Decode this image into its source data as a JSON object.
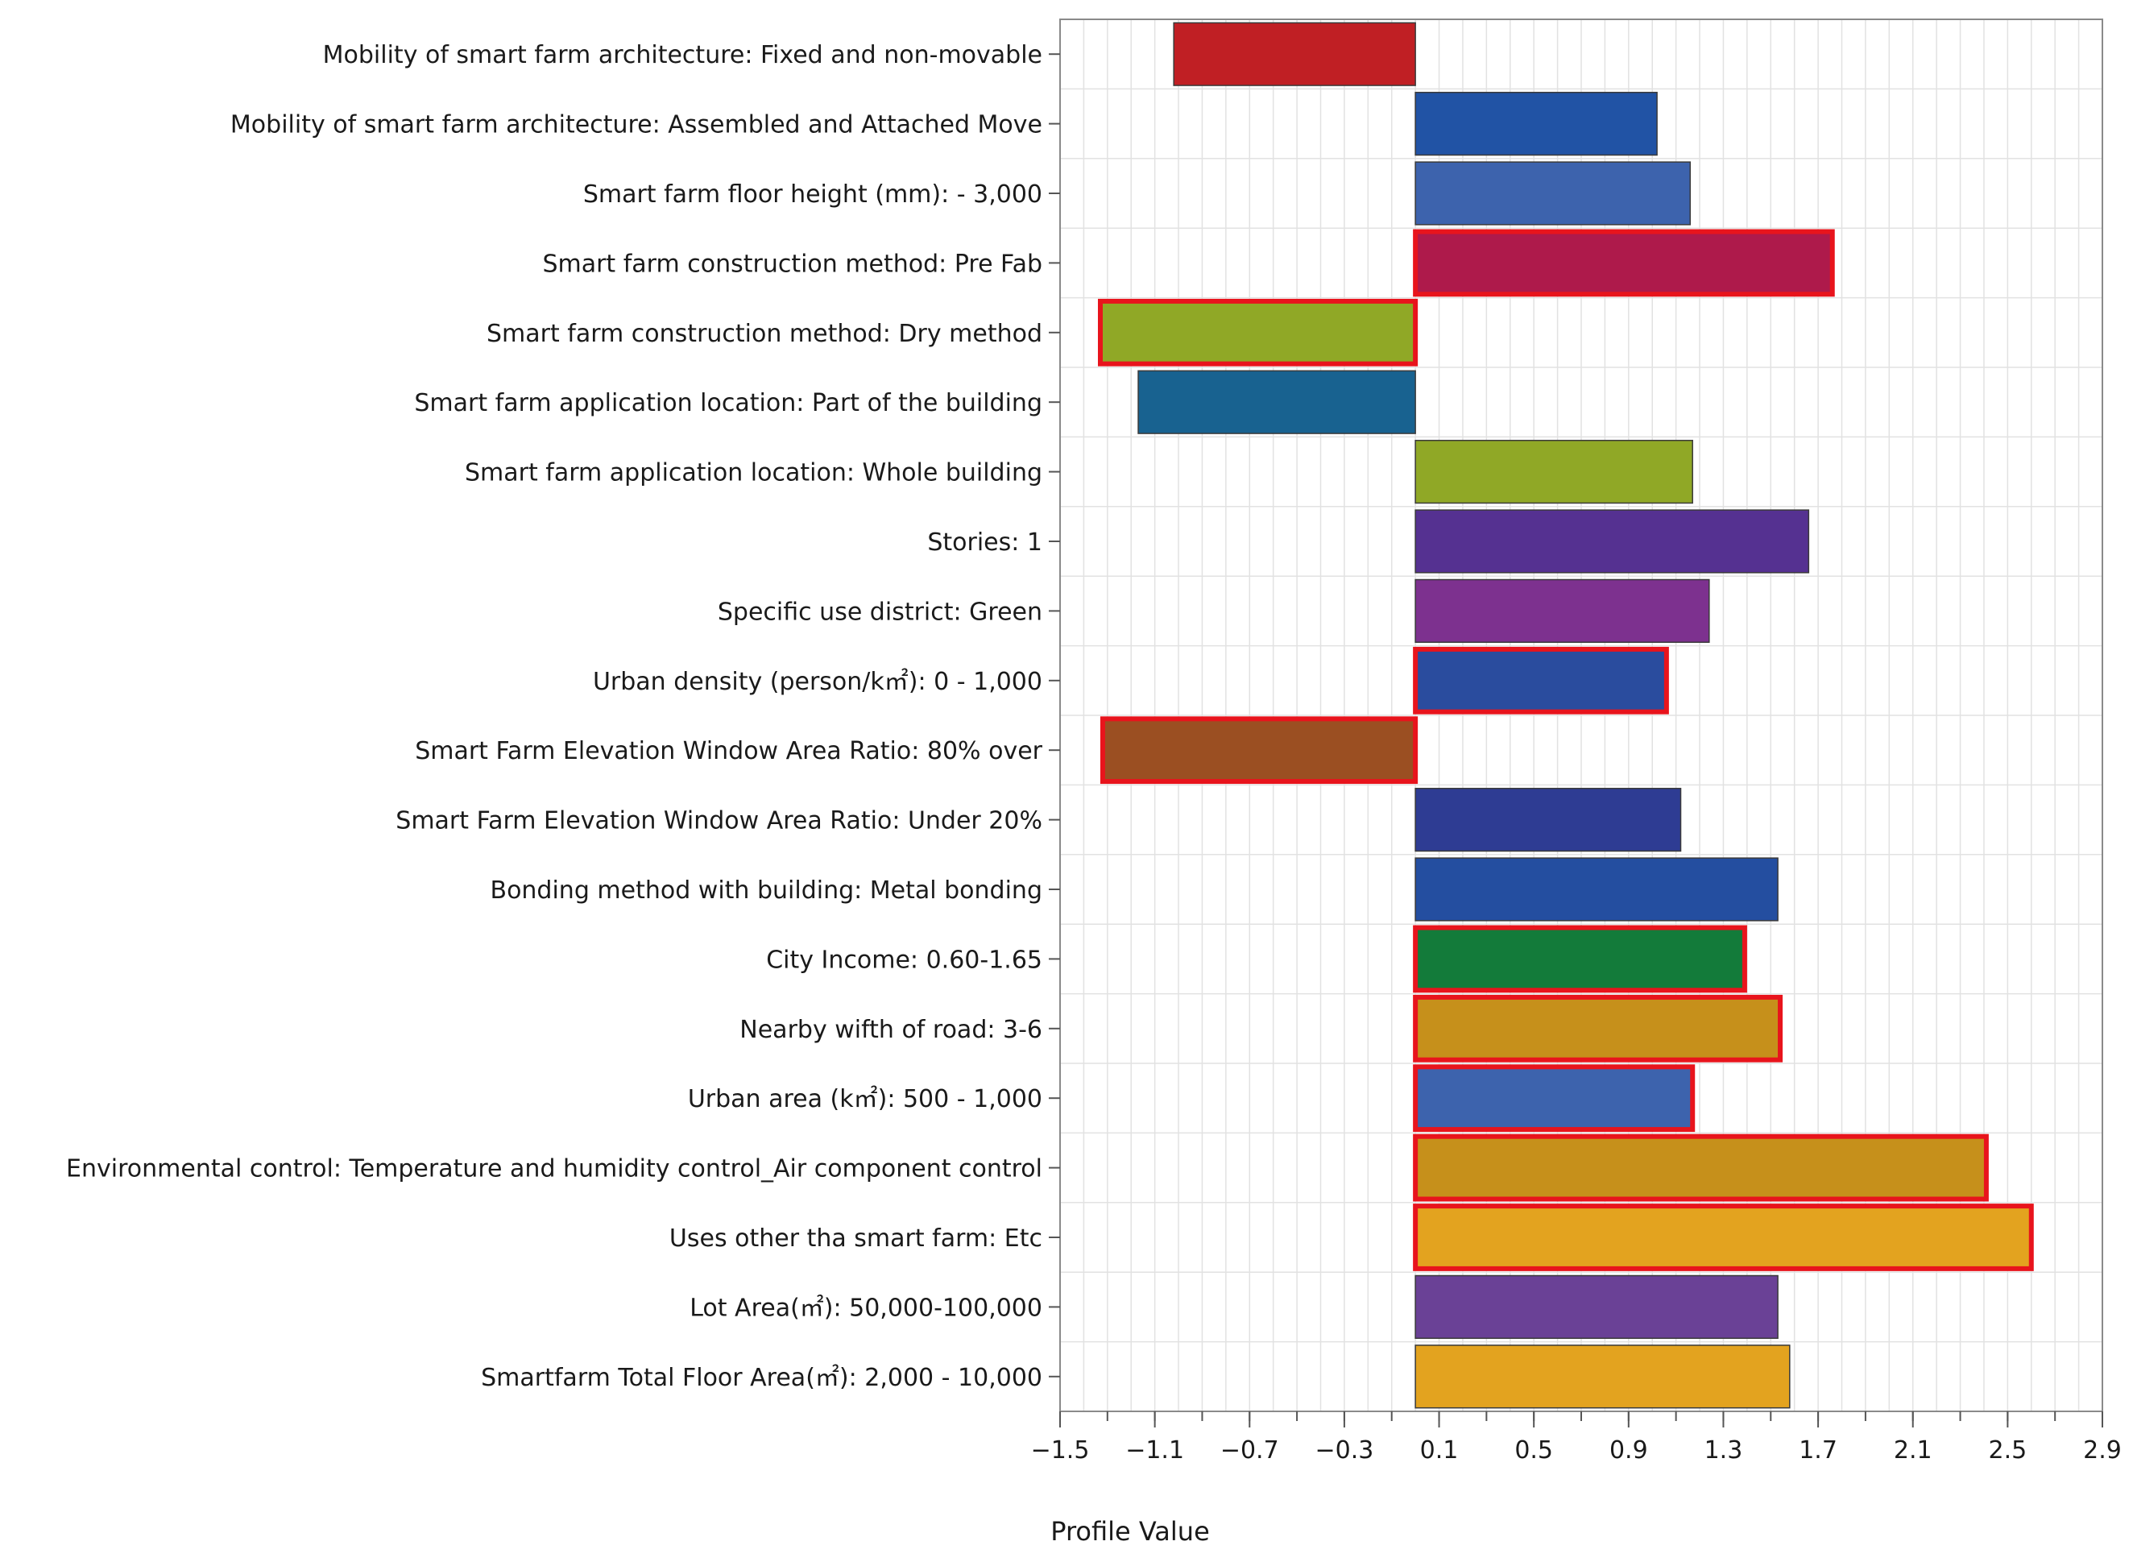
{
  "chart_data": {
    "type": "bar",
    "orientation": "horizontal",
    "xlabel": "Profile Value",
    "ylabel": "",
    "xlim": [
      -1.5,
      2.9
    ],
    "x_ticks": [
      "-1.5",
      "-1.1",
      "-0.7",
      "-0.3",
      "0.1",
      "0.5",
      "0.9",
      "1.3",
      "1.7",
      "2.1",
      "2.5",
      "2.9"
    ],
    "grid": true,
    "baseline": 0,
    "categories": [
      "Mobility of smart farm architecture: Fixed and non-movable",
      "Mobility of smart farm architecture: Assembled and Attached Move",
      "Smart farm floor height (mm): - 3,000",
      "Smart farm construction method: Pre Fab",
      "Smart farm construction method: Dry method",
      "Smart farm application location: Part of the building",
      "Smart farm application location: Whole building",
      "Stories: 1",
      "Specific use district: Green",
      "Urban density (person/k㎡): 0 - 1,000",
      "Smart Farm Elevation Window Area Ratio: 80% over",
      "Smart Farm Elevation Window Area Ratio: Under 20%",
      "Bonding method with building: Metal bonding",
      "City Income: 0.60-1.65",
      "Nearby wifth of road: 3-6",
      "Urban area (k㎡): 500 - 1,000",
      "Environmental control: Temperature and humidity control_Air component control",
      "Uses other tha smart farm: Etc",
      "Lot Area(㎡): 50,000-100,000",
      "Smartfarm Total Floor Area(㎡): 2,000 - 10,000"
    ],
    "values": [
      -1.02,
      1.02,
      1.16,
      1.76,
      -1.33,
      -1.17,
      1.17,
      1.66,
      1.24,
      1.06,
      -1.32,
      1.12,
      1.53,
      1.39,
      1.54,
      1.17,
      2.41,
      2.6,
      1.53,
      1.58
    ],
    "colors": [
      "#c01f24",
      "#2153a5",
      "#3d63ad",
      "#ae1a4b",
      "#90a826",
      "#186290",
      "#90a826",
      "#553191",
      "#7d318f",
      "#2a4c9e",
      "#9b4f22",
      "#2e3c93",
      "#244ea0",
      "#137b3a",
      "#c6901b",
      "#3d63ad",
      "#c6901b",
      "#e3a31f",
      "#6a4196",
      "#e3a31f"
    ],
    "highlighted": [
      false,
      false,
      false,
      true,
      true,
      false,
      false,
      false,
      false,
      true,
      true,
      false,
      false,
      true,
      true,
      true,
      true,
      true,
      false,
      false
    ],
    "highlight_color": "#e8141c"
  }
}
